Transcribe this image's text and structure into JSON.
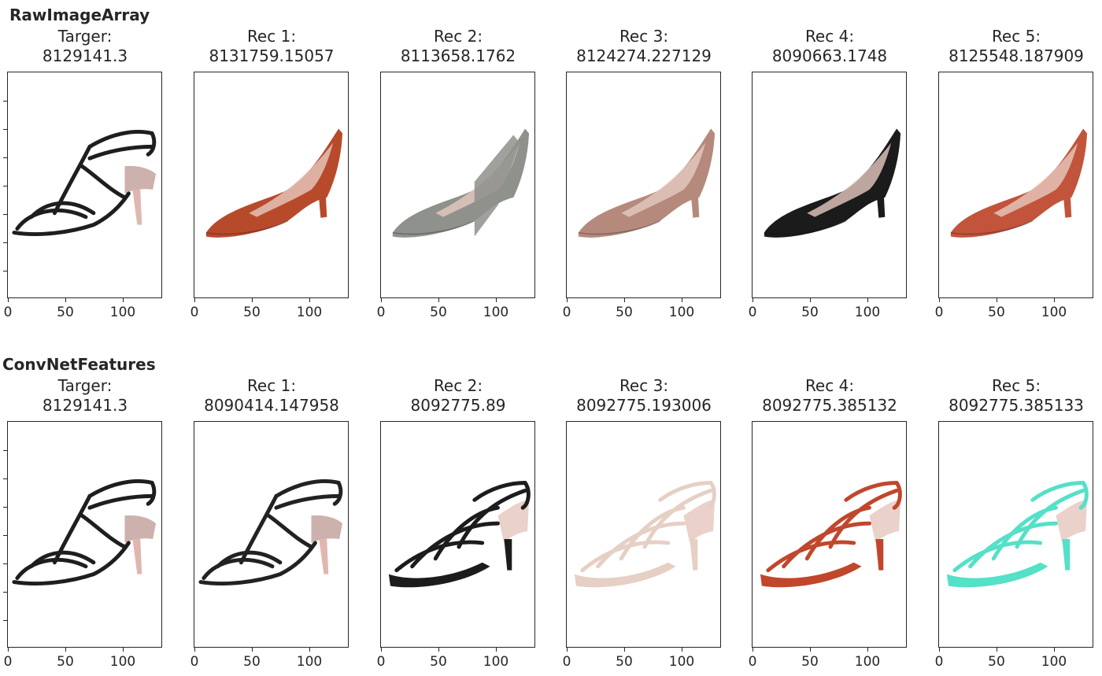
{
  "sections": [
    {
      "label": "RawImageArray",
      "panels": [
        {
          "line1": "Targer:",
          "line2": "8129141.3",
          "shoe": "strappy-sandal",
          "color": "#1e1e1e"
        },
        {
          "line1": "Rec 1:",
          "line2": "8131759.15057",
          "shoe": "pump",
          "color": "#b84a2c"
        },
        {
          "line1": "Rec 2:",
          "line2": "8113658.1762",
          "shoe": "wedge-pump",
          "color": "#8e918c"
        },
        {
          "line1": "Rec 3:",
          "line2": "8124274.227129",
          "shoe": "pump",
          "color": "#b58a7c"
        },
        {
          "line1": "Rec 4:",
          "line2": "8090663.1748",
          "shoe": "pump",
          "color": "#1b1b1b"
        },
        {
          "line1": "Rec 5:",
          "line2": "8125548.187909",
          "shoe": "pump",
          "color": "#c2543b"
        }
      ]
    },
    {
      "label": "ConvNetFeatures",
      "panels": [
        {
          "line1": "Targer:",
          "line2": "8129141.3",
          "shoe": "strappy-sandal",
          "color": "#1e1e1e"
        },
        {
          "line1": "Rec 1:",
          "line2": "8090414.147958",
          "shoe": "strappy-sandal",
          "color": "#222222"
        },
        {
          "line1": "Rec 2:",
          "line2": "8092775.89",
          "shoe": "platform-sandal",
          "color": "#1c1c1c"
        },
        {
          "line1": "Rec 3:",
          "line2": "8092775.193006",
          "shoe": "platform-sandal",
          "color": "#e6cfc5"
        },
        {
          "line1": "Rec 4:",
          "line2": "8092775.385132",
          "shoe": "platform-sandal",
          "color": "#c0472c"
        },
        {
          "line1": "Rec 5:",
          "line2": "8092775.385133",
          "shoe": "platform-sandal",
          "color": "#55e0c8"
        }
      ]
    }
  ],
  "x_ticks": [
    "0",
    "50",
    "100"
  ]
}
